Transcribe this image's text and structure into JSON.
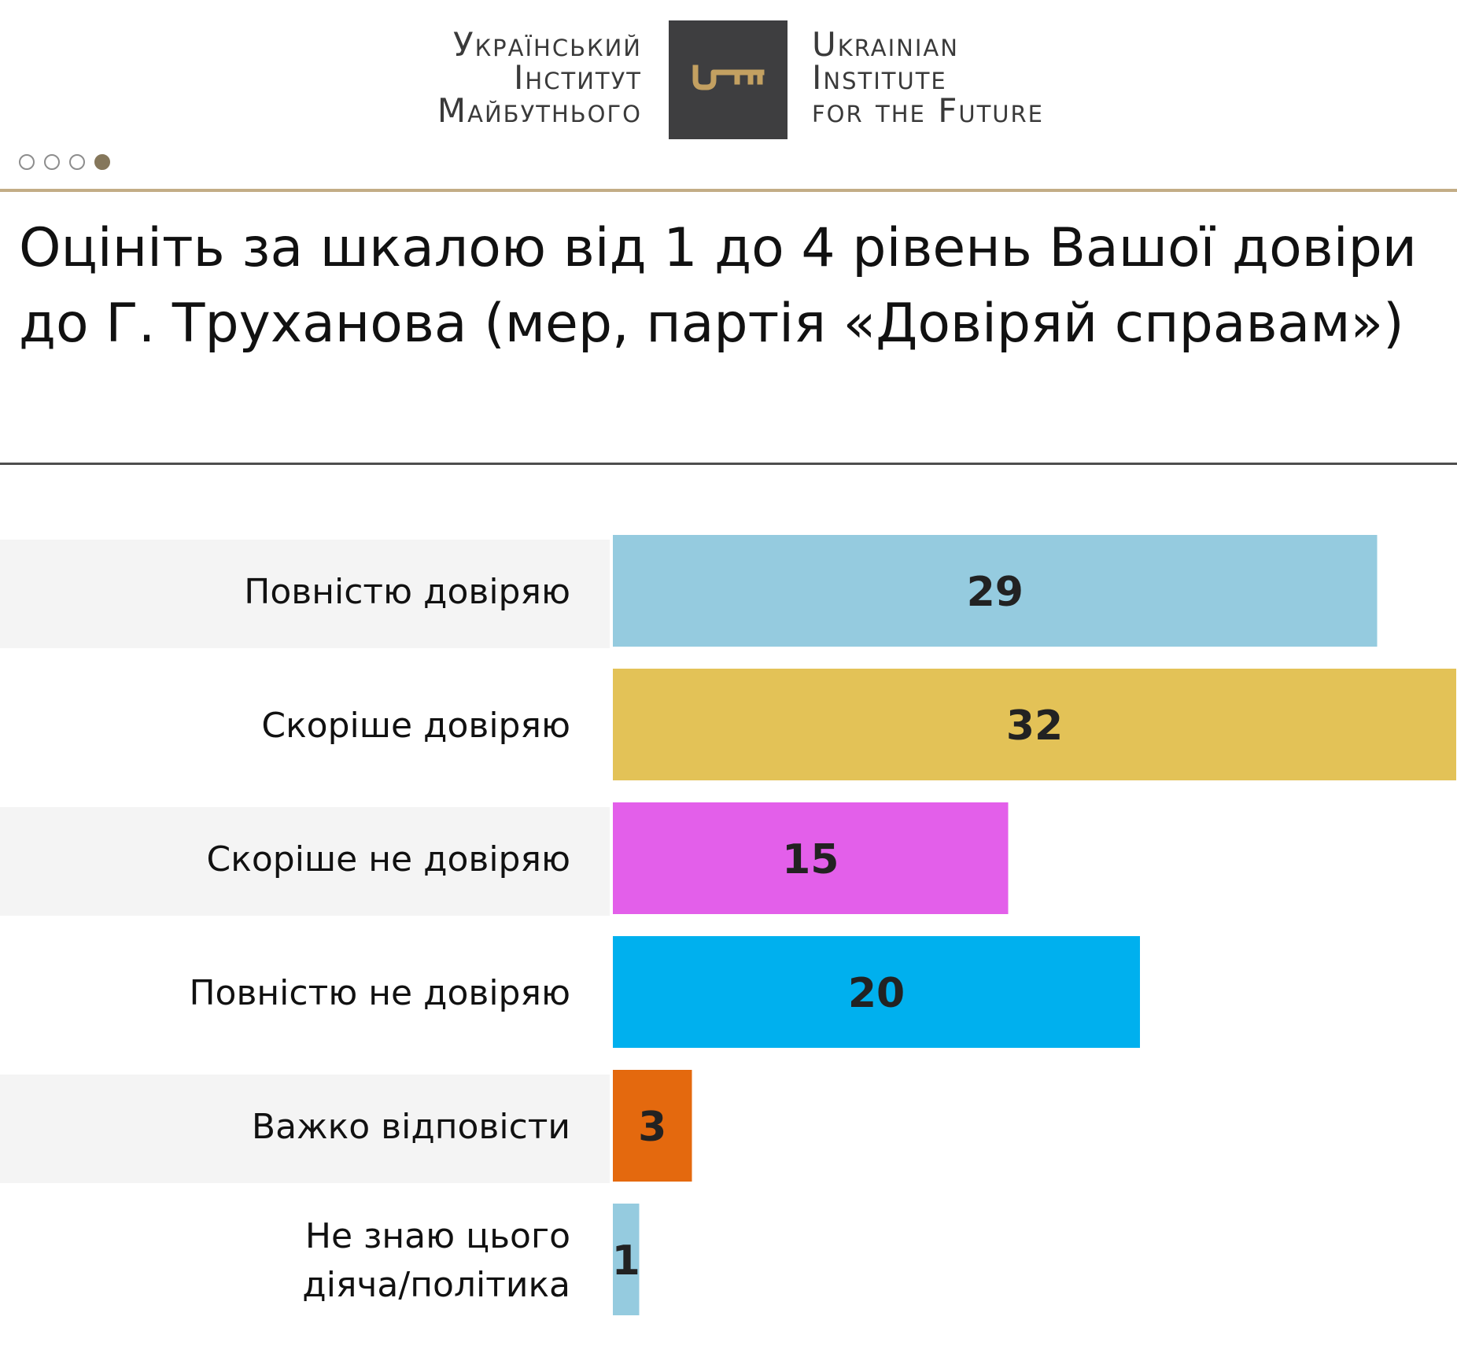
{
  "header": {
    "logo_ua_lines": [
      "Український",
      "Інститут",
      "Майбутнього"
    ],
    "logo_en_lines": [
      "Ukrainian",
      "Institute",
      "for the Future"
    ],
    "logo_icon": "key-icon",
    "colors": {
      "logo_box": "#3e3e40",
      "key": "#c3a061",
      "rule": "#c3ad86"
    }
  },
  "pagination": {
    "count": 4,
    "active_index": 3,
    "active_color": "#85775b"
  },
  "chart_data": {
    "type": "bar",
    "orientation": "horizontal",
    "title": "Оцініть за шкалою від 1 до 4 рівень Вашої довіри до Г. Труханова (мер, партія «Довіряй справам»)",
    "categories": [
      [
        "Повністю довіряю"
      ],
      [
        "Скоріше довіряю"
      ],
      [
        "Скоріше не довіряю"
      ],
      [
        "Повністю не довіряю"
      ],
      [
        "Важко відповісти"
      ],
      [
        "Не знаю цього",
        "діяча/політика"
      ]
    ],
    "values": [
      29,
      32,
      15,
      20,
      3,
      1
    ],
    "colors": [
      "#95cbdf",
      "#e3c257",
      "#e35fea",
      "#00b0ee",
      "#e4690e",
      "#95cbdf"
    ],
    "xlim": [
      0,
      32
    ],
    "grid": false,
    "legend": "none",
    "row_band_color": "#f4f4f4"
  }
}
